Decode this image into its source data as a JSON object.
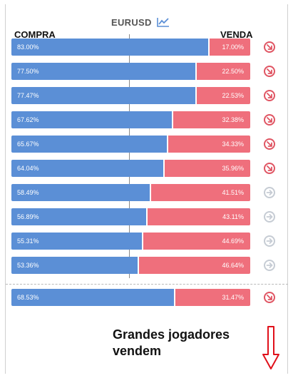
{
  "header": {
    "ticker": "EURUSD",
    "chart_icon": "trend-chart-icon",
    "buy_label": "COMPRA",
    "sell_label": "VENDA"
  },
  "rows": [
    {
      "buy": "83.00%",
      "sell": "17.00%",
      "buy_fraction": 0.83,
      "status": "down"
    },
    {
      "buy": "77.50%",
      "sell": "22.50%",
      "buy_fraction": 0.775,
      "status": "down"
    },
    {
      "buy": "77.47%",
      "sell": "22.53%",
      "buy_fraction": 0.7747,
      "status": "down"
    },
    {
      "buy": "67.62%",
      "sell": "32.38%",
      "buy_fraction": 0.6762,
      "status": "down"
    },
    {
      "buy": "65.67%",
      "sell": "34.33%",
      "buy_fraction": 0.6567,
      "status": "down"
    },
    {
      "buy": "64.04%",
      "sell": "35.96%",
      "buy_fraction": 0.6404,
      "status": "down"
    },
    {
      "buy": "58.49%",
      "sell": "41.51%",
      "buy_fraction": 0.5849,
      "status": "neutral"
    },
    {
      "buy": "56.89%",
      "sell": "43.11%",
      "buy_fraction": 0.5689,
      "status": "neutral"
    },
    {
      "buy": "55.31%",
      "sell": "44.69%",
      "buy_fraction": 0.5531,
      "status": "neutral"
    },
    {
      "buy": "53.36%",
      "sell": "46.64%",
      "buy_fraction": 0.5336,
      "status": "neutral"
    }
  ],
  "total": {
    "buy": "68.53%",
    "sell": "31.47%",
    "buy_fraction": 0.6853,
    "status": "down"
  },
  "annotation": {
    "line1": "Grandes jogadores",
    "line2": "vendem",
    "arrow_icon": "red-down-arrow-icon"
  },
  "colors": {
    "buy": "#5b8fd6",
    "sell": "#ef6f7c",
    "status_down": "#e05563",
    "status_neutral": "#c6ccd4",
    "arrow": "#e0101a"
  }
}
